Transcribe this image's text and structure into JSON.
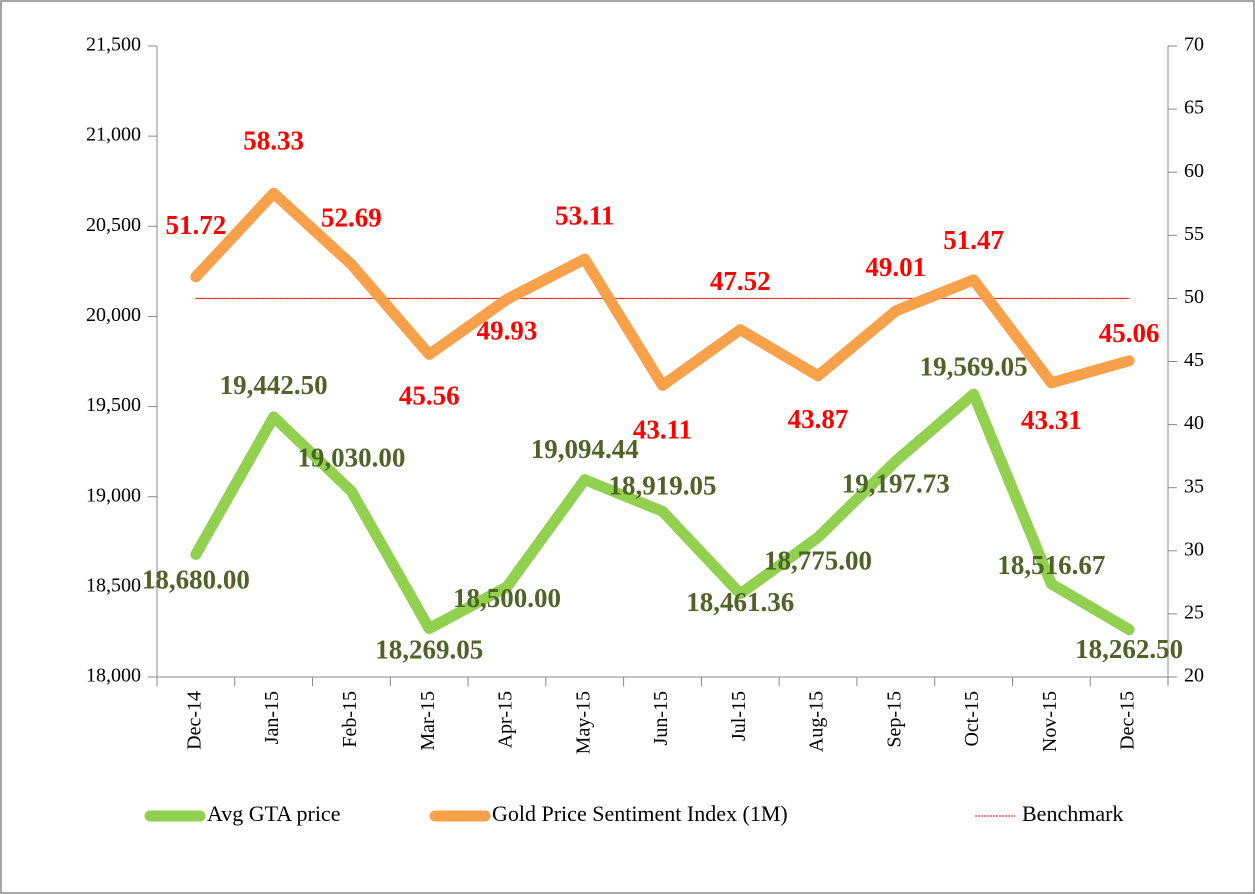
{
  "chart_data": {
    "type": "line",
    "categories": [
      "Dec-14",
      "Jan-15",
      "Feb-15",
      "Mar-15",
      "Apr-15",
      "May-15",
      "Jun-15",
      "Jul-15",
      "Aug-15",
      "Sep-15",
      "Oct-15",
      "Nov-15",
      "Dec-15"
    ],
    "series": [
      {
        "name": "Avg GTA price",
        "color": "#92d050",
        "label_color": "#4f6228",
        "values": [
          18680,
          19442.5,
          19030,
          18269.05,
          18500,
          19094.44,
          18919.05,
          18461.36,
          18775,
          19197.73,
          19569.05,
          18516.67,
          18262.5
        ],
        "value_labels": [
          "18,680.00",
          "19,442.50",
          "19,030.00",
          "18,269.05",
          "18,500.00",
          "19,094.44",
          "18,919.05",
          "18,461.36",
          "18,775.00",
          "19,197.73",
          "19,569.05",
          "18,516.67",
          "18,262.50"
        ]
      },
      {
        "name": "Gold Price Sentiment Index (1M)",
        "color": "#f9a04b",
        "label_color": "#ff0000",
        "axis": "y2",
        "values": [
          51.72,
          58.33,
          52.69,
          45.56,
          49.93,
          53.11,
          43.11,
          47.52,
          43.87,
          49.01,
          51.47,
          43.31,
          45.06
        ]
      },
      {
        "name": "Benchmark",
        "color": "#ff0000",
        "axis": "y2",
        "dashed": true,
        "values": [
          50,
          50,
          50,
          50,
          50,
          50,
          50,
          50,
          50,
          50,
          50,
          50,
          50
        ]
      }
    ],
    "ylim": [
      18000,
      21500
    ],
    "yticks": [
      {
        "value": 18000,
        "label": "18,000"
      },
      {
        "value": 18500,
        "label": "18,500"
      },
      {
        "value": 19000,
        "label": "19,000"
      },
      {
        "value": 19500,
        "label": "19,500"
      },
      {
        "value": 20000,
        "label": "20,000"
      },
      {
        "value": 20500,
        "label": "20,500"
      },
      {
        "value": 21000,
        "label": "21,000"
      },
      {
        "value": 21500,
        "label": "21,500"
      }
    ],
    "y2lim": [
      20,
      70
    ],
    "y2ticks": [
      20,
      25,
      30,
      35,
      40,
      45,
      50,
      55,
      60,
      65,
      70
    ]
  }
}
